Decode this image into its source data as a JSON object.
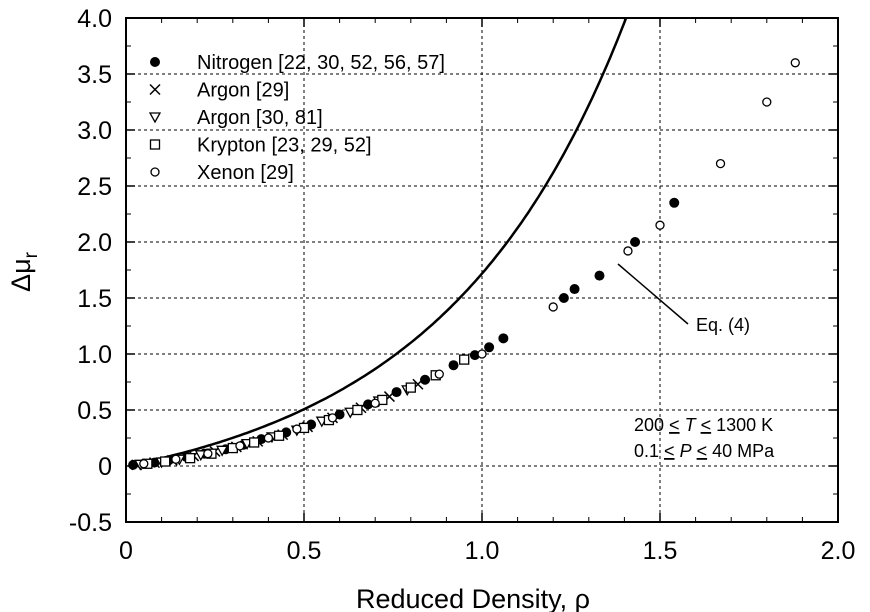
{
  "chart_data": {
    "type": "scatter",
    "xlabel": "Reduced Density,  ρ",
    "ylabel": "Δμ",
    "ylabel_subscript": "r",
    "xlim": [
      0,
      2.0
    ],
    "ylim": [
      -0.5,
      4.0
    ],
    "xticks": [
      "0",
      "0.5",
      "1.0",
      "1.5",
      "2.0"
    ],
    "yticks": [
      "-0.5",
      "0",
      "0.5",
      "1.0",
      "1.5",
      "2.0",
      "2.5",
      "3.0",
      "3.5",
      "4.0"
    ],
    "grid": "dashed",
    "legend_position": "top-left",
    "series": [
      {
        "name": "Nitrogen [22, 30, 52, 56, 57]",
        "marker": "filled-circle",
        "x": [
          0.02,
          0.05,
          0.08,
          0.12,
          0.17,
          0.22,
          0.28,
          0.33,
          0.38,
          0.45,
          0.52,
          0.6,
          0.68,
          0.76,
          0.84,
          0.92,
          0.98,
          1.02,
          1.06,
          1.23,
          1.26,
          1.33,
          1.43,
          1.54
        ],
        "y": [
          0.01,
          0.02,
          0.03,
          0.05,
          0.08,
          0.11,
          0.15,
          0.19,
          0.24,
          0.3,
          0.37,
          0.46,
          0.55,
          0.66,
          0.77,
          0.9,
          0.99,
          1.06,
          1.14,
          1.5,
          1.58,
          1.7,
          2.0,
          2.35
        ]
      },
      {
        "name": "Argon [29]",
        "marker": "cross",
        "x": [
          0.03,
          0.08,
          0.13,
          0.19,
          0.25,
          0.31,
          0.37,
          0.44,
          0.51,
          0.58,
          0.66,
          0.74,
          0.82
        ],
        "y": [
          0.01,
          0.03,
          0.05,
          0.09,
          0.13,
          0.17,
          0.22,
          0.28,
          0.35,
          0.43,
          0.52,
          0.62,
          0.73
        ]
      },
      {
        "name": "Argon [30, 81]",
        "marker": "triangle-down",
        "x": [
          0.04,
          0.1,
          0.15,
          0.21,
          0.27,
          0.34,
          0.41,
          0.48,
          0.55,
          0.63,
          0.71,
          0.79
        ],
        "y": [
          0.015,
          0.035,
          0.06,
          0.1,
          0.14,
          0.2,
          0.26,
          0.32,
          0.4,
          0.48,
          0.58,
          0.68
        ]
      },
      {
        "name": "Krypton [23, 29, 52]",
        "marker": "open-square",
        "x": [
          0.06,
          0.11,
          0.18,
          0.24,
          0.3,
          0.36,
          0.43,
          0.5,
          0.57,
          0.65,
          0.72,
          0.8,
          0.87,
          0.95
        ],
        "y": [
          0.02,
          0.04,
          0.07,
          0.11,
          0.16,
          0.21,
          0.27,
          0.34,
          0.41,
          0.5,
          0.59,
          0.7,
          0.81,
          0.95
        ]
      },
      {
        "name": "Xenon [29]",
        "marker": "open-circle",
        "x": [
          0.05,
          0.14,
          0.23,
          0.32,
          0.4,
          0.48,
          0.58,
          0.7,
          0.88,
          1.0,
          1.2,
          1.41,
          1.5,
          1.67,
          1.8,
          1.88
        ],
        "y": [
          0.02,
          0.06,
          0.11,
          0.18,
          0.25,
          0.33,
          0.43,
          0.56,
          0.82,
          1.0,
          1.42,
          1.92,
          2.15,
          2.7,
          3.25,
          3.6
        ]
      }
    ],
    "fit_curve": {
      "label": "Eq. (4)",
      "style": "solid"
    },
    "annotations": [
      "200 < T < 1300 K",
      "0.1 < P < 40 MPa"
    ]
  },
  "labels": {
    "eq_label": "Eq. (4)",
    "cond_t_pre": "200 ",
    "cond_t_le1": "<",
    "cond_t_var": "T",
    "cond_t_le2": "<",
    "cond_t_post": " 1300 K",
    "cond_p_pre": "0.1 ",
    "cond_p_le1": "<",
    "cond_p_var": "P",
    "cond_p_le2": "<",
    "cond_p_post": " 40 MPa"
  }
}
